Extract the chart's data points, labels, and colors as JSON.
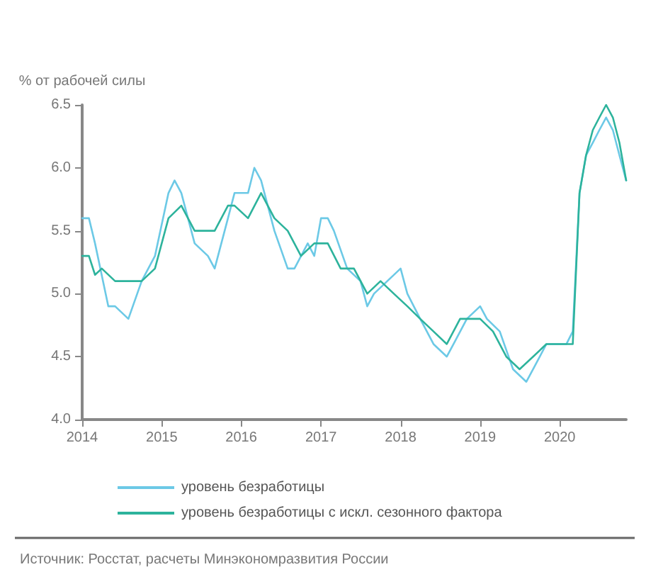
{
  "chart_data": {
    "type": "line",
    "ylabel": "% от рабочей силы",
    "annotations": [
      "Источник: Росстат, расчеты Минэкономразвития России"
    ],
    "xlim": [
      "2014-01",
      "2020-11"
    ],
    "xticks": [
      "2014",
      "2015",
      "2016",
      "2017",
      "2018",
      "2019",
      "2020"
    ],
    "ylim": [
      4,
      6.5
    ],
    "yticks": [
      {
        "value": 4,
        "label": "4.0"
      },
      {
        "value": 4.5,
        "label": "4.5"
      },
      {
        "value": 5,
        "label": "5.0"
      },
      {
        "value": 5.5,
        "label": "5.5"
      },
      {
        "value": 6,
        "label": "6.0"
      },
      {
        "value": 6.5,
        "label": "6.5"
      }
    ],
    "grid": false,
    "legend": "bottom",
    "marker": "none",
    "line_style": "solid",
    "series": [
      {
        "name": "уровень безработицы",
        "color": "#6cc9e6",
        "x": [
          "2014-01",
          "2014-02",
          "2014-03",
          "2014-05",
          "2014-06",
          "2014-08",
          "2014-10",
          "2014-12",
          "2015-02",
          "2015-03",
          "2015-04",
          "2015-06",
          "2015-08",
          "2015-09",
          "2015-11",
          "2015-12",
          "2016-02",
          "2016-03",
          "2016-04",
          "2016-06",
          "2016-08",
          "2016-09",
          "2016-11",
          "2016-12",
          "2017-01",
          "2017-02",
          "2017-03",
          "2017-05",
          "2017-07",
          "2017-08",
          "2017-09",
          "2017-11",
          "2018-01",
          "2018-02",
          "2018-04",
          "2018-06",
          "2018-08",
          "2018-09",
          "2018-11",
          "2019-01",
          "2019-02",
          "2019-04",
          "2019-06",
          "2019-08",
          "2019-09",
          "2019-11",
          "2020-01",
          "2020-02",
          "2020-03",
          "2020-04",
          "2020-05",
          "2020-06",
          "2020-07",
          "2020-08",
          "2020-09",
          "2020-10",
          "2020-11"
        ],
        "values": [
          5.6,
          5.6,
          5.4,
          4.9,
          4.9,
          4.8,
          5.1,
          5.3,
          5.8,
          5.9,
          5.8,
          5.4,
          5.3,
          5.2,
          5.6,
          5.8,
          5.8,
          6.0,
          5.9,
          5.5,
          5.2,
          5.2,
          5.4,
          5.3,
          5.6,
          5.6,
          5.5,
          5.2,
          5.1,
          4.9,
          5.0,
          5.1,
          5.2,
          5.0,
          4.8,
          4.6,
          4.5,
          4.6,
          4.8,
          4.9,
          4.8,
          4.7,
          4.4,
          4.3,
          4.4,
          4.6,
          4.6,
          4.6,
          4.7,
          5.8,
          6.1,
          6.2,
          6.3,
          6.4,
          6.3,
          6.1,
          5.9
        ]
      },
      {
        "name": "уровень безработицы с искл. сезонного фактора",
        "color": "#2db39c",
        "x": [
          "2014-01",
          "2014-02",
          "2014-03",
          "2014-04",
          "2014-06",
          "2014-08",
          "2014-10",
          "2014-12",
          "2015-02",
          "2015-04",
          "2015-06",
          "2015-08",
          "2015-09",
          "2015-11",
          "2015-12",
          "2016-02",
          "2016-04",
          "2016-06",
          "2016-08",
          "2016-10",
          "2016-12",
          "2017-02",
          "2017-04",
          "2017-06",
          "2017-08",
          "2017-10",
          "2017-12",
          "2018-02",
          "2018-04",
          "2018-06",
          "2018-08",
          "2018-10",
          "2019-01",
          "2019-03",
          "2019-05",
          "2019-07",
          "2019-09",
          "2019-11",
          "2020-01",
          "2020-03",
          "2020-04",
          "2020-05",
          "2020-06",
          "2020-07",
          "2020-08",
          "2020-09",
          "2020-10",
          "2020-11"
        ],
        "values": [
          5.3,
          5.3,
          5.15,
          5.2,
          5.1,
          5.1,
          5.1,
          5.2,
          5.6,
          5.7,
          5.5,
          5.5,
          5.5,
          5.7,
          5.7,
          5.6,
          5.8,
          5.6,
          5.5,
          5.3,
          5.4,
          5.4,
          5.2,
          5.2,
          5.0,
          5.1,
          5.0,
          4.9,
          4.8,
          4.7,
          4.6,
          4.8,
          4.8,
          4.7,
          4.5,
          4.4,
          4.5,
          4.6,
          4.6,
          4.6,
          5.8,
          6.1,
          6.3,
          6.4,
          6.5,
          6.4,
          6.2,
          5.9
        ]
      }
    ]
  }
}
